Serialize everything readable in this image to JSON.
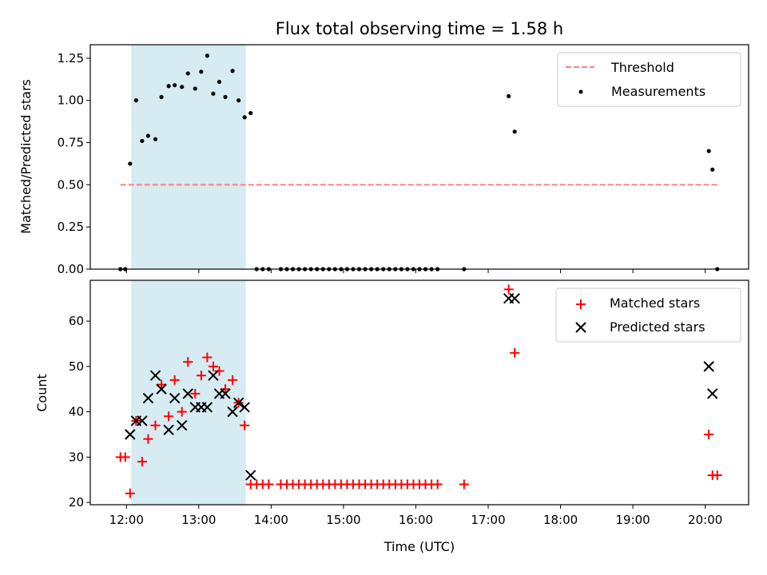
{
  "chart_data": [
    {
      "type": "scatter",
      "title": "Flux total observing time = 1.58 h",
      "xlabel": "",
      "ylabel": "Matched/Predicted stars",
      "xlim": [
        "11:30",
        "20:36"
      ],
      "ylim": [
        0,
        1.33
      ],
      "yticks": [
        "0.00",
        "0.25",
        "0.50",
        "0.75",
        "1.00",
        "1.25"
      ],
      "shaded_span": [
        "12:04",
        "13:39"
      ],
      "legend_position": "upper right",
      "threshold": {
        "name": "Threshold",
        "value": 0.5,
        "x_start": "11:55",
        "x_end": "20:10",
        "color": "#ff7f7f"
      },
      "series": [
        {
          "name": "Measurements",
          "color": "#000000",
          "points": [
            [
              "11:55",
              0.0
            ],
            [
              "11:59",
              0.0
            ],
            [
              "12:03",
              0.625
            ],
            [
              "12:08",
              1.0
            ],
            [
              "12:13",
              0.76
            ],
            [
              "12:18",
              0.79
            ],
            [
              "12:24",
              0.77
            ],
            [
              "12:29",
              1.02
            ],
            [
              "12:35",
              1.085
            ],
            [
              "12:40",
              1.09
            ],
            [
              "12:46",
              1.08
            ],
            [
              "12:51",
              1.16
            ],
            [
              "12:57",
              1.07
            ],
            [
              "13:02",
              1.17
            ],
            [
              "13:07",
              1.265
            ],
            [
              "13:12",
              1.04
            ],
            [
              "13:17",
              1.11
            ],
            [
              "13:22",
              1.02
            ],
            [
              "13:28",
              1.175
            ],
            [
              "13:33",
              1.0
            ],
            [
              "13:38",
              0.9
            ],
            [
              "13:43",
              0.925
            ],
            [
              "13:48",
              0.0
            ],
            [
              "13:53",
              0.0
            ],
            [
              "13:58",
              0.0
            ],
            [
              "14:08",
              0.0
            ],
            [
              "14:13",
              0.0
            ],
            [
              "14:18",
              0.0
            ],
            [
              "14:23",
              0.0
            ],
            [
              "14:28",
              0.0
            ],
            [
              "14:33",
              0.0
            ],
            [
              "14:38",
              0.0
            ],
            [
              "14:43",
              0.0
            ],
            [
              "14:48",
              0.0
            ],
            [
              "14:53",
              0.0
            ],
            [
              "14:58",
              0.0
            ],
            [
              "15:03",
              0.0
            ],
            [
              "15:08",
              0.0
            ],
            [
              "15:13",
              0.0
            ],
            [
              "15:18",
              0.0
            ],
            [
              "15:23",
              0.0
            ],
            [
              "15:28",
              0.0
            ],
            [
              "15:33",
              0.0
            ],
            [
              "15:38",
              0.0
            ],
            [
              "15:43",
              0.0
            ],
            [
              "15:48",
              0.0
            ],
            [
              "15:53",
              0.0
            ],
            [
              "15:58",
              0.0
            ],
            [
              "16:03",
              0.0
            ],
            [
              "16:08",
              0.0
            ],
            [
              "16:13",
              0.0
            ],
            [
              "16:18",
              0.0
            ],
            [
              "16:40",
              0.0
            ],
            [
              "17:17",
              1.025
            ],
            [
              "17:22",
              0.815
            ],
            [
              "20:03",
              0.7
            ],
            [
              "20:06",
              0.59
            ],
            [
              "20:10",
              0.0
            ]
          ]
        }
      ]
    },
    {
      "type": "scatter",
      "title": "",
      "xlabel": "Time (UTC)",
      "ylabel": "Count",
      "xlim": [
        "11:30",
        "20:36"
      ],
      "ylim": [
        19.5,
        69
      ],
      "xticks": [
        "12:00",
        "13:00",
        "14:00",
        "15:00",
        "16:00",
        "17:00",
        "18:00",
        "19:00",
        "20:00"
      ],
      "yticks": [
        "20",
        "30",
        "40",
        "50",
        "60"
      ],
      "shaded_span": [
        "12:04",
        "13:39"
      ],
      "legend_position": "upper right",
      "series": [
        {
          "name": "Matched stars",
          "marker": "+",
          "color": "#ff0000",
          "points": [
            [
              "11:55",
              30
            ],
            [
              "11:59",
              30
            ],
            [
              "12:03",
              22
            ],
            [
              "12:08",
              38
            ],
            [
              "12:13",
              29
            ],
            [
              "12:18",
              34
            ],
            [
              "12:24",
              37
            ],
            [
              "12:29",
              46
            ],
            [
              "12:35",
              39
            ],
            [
              "12:40",
              47
            ],
            [
              "12:46",
              40
            ],
            [
              "12:51",
              51
            ],
            [
              "12:57",
              44
            ],
            [
              "13:02",
              48
            ],
            [
              "13:07",
              52
            ],
            [
              "13:12",
              50
            ],
            [
              "13:17",
              49
            ],
            [
              "13:22",
              45
            ],
            [
              "13:28",
              47
            ],
            [
              "13:33",
              42
            ],
            [
              "13:38",
              37
            ],
            [
              "13:43",
              24
            ],
            [
              "13:48",
              24
            ],
            [
              "13:53",
              24
            ],
            [
              "13:58",
              24
            ],
            [
              "14:08",
              24
            ],
            [
              "14:13",
              24
            ],
            [
              "14:18",
              24
            ],
            [
              "14:23",
              24
            ],
            [
              "14:28",
              24
            ],
            [
              "14:33",
              24
            ],
            [
              "14:38",
              24
            ],
            [
              "14:43",
              24
            ],
            [
              "14:48",
              24
            ],
            [
              "14:53",
              24
            ],
            [
              "14:58",
              24
            ],
            [
              "15:03",
              24
            ],
            [
              "15:08",
              24
            ],
            [
              "15:13",
              24
            ],
            [
              "15:18",
              24
            ],
            [
              "15:23",
              24
            ],
            [
              "15:28",
              24
            ],
            [
              "15:33",
              24
            ],
            [
              "15:38",
              24
            ],
            [
              "15:43",
              24
            ],
            [
              "15:48",
              24
            ],
            [
              "15:53",
              24
            ],
            [
              "15:58",
              24
            ],
            [
              "16:03",
              24
            ],
            [
              "16:08",
              24
            ],
            [
              "16:13",
              24
            ],
            [
              "16:18",
              24
            ],
            [
              "16:40",
              24
            ],
            [
              "17:17",
              67
            ],
            [
              "17:22",
              53
            ],
            [
              "20:03",
              35
            ],
            [
              "20:06",
              26
            ],
            [
              "20:10",
              26
            ]
          ]
        },
        {
          "name": "Predicted stars",
          "marker": "x",
          "color": "#000000",
          "points": [
            [
              "12:03",
              35
            ],
            [
              "12:08",
              38
            ],
            [
              "12:13",
              38
            ],
            [
              "12:18",
              43
            ],
            [
              "12:24",
              48
            ],
            [
              "12:29",
              45
            ],
            [
              "12:35",
              36
            ],
            [
              "12:40",
              43
            ],
            [
              "12:46",
              37
            ],
            [
              "12:51",
              44
            ],
            [
              "12:57",
              41
            ],
            [
              "13:02",
              41
            ],
            [
              "13:07",
              41
            ],
            [
              "13:12",
              48
            ],
            [
              "13:17",
              44
            ],
            [
              "13:22",
              44
            ],
            [
              "13:28",
              40
            ],
            [
              "13:33",
              42
            ],
            [
              "13:38",
              41
            ],
            [
              "13:43",
              26
            ],
            [
              "17:17",
              65
            ],
            [
              "17:22",
              65
            ],
            [
              "20:03",
              50
            ],
            [
              "20:06",
              44
            ]
          ]
        }
      ]
    }
  ]
}
